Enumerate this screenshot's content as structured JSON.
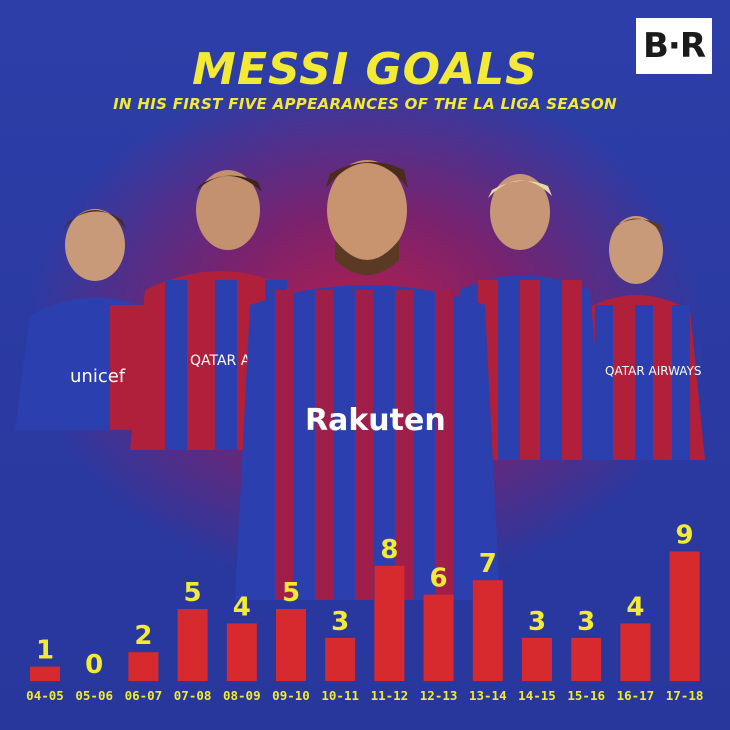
{
  "brand": {
    "logo_text": "B·R"
  },
  "colors": {
    "background": "#2e3ea8",
    "bar": "#d62a2e",
    "text": "#f2ea34",
    "player_red": "#b0203a",
    "player_blue": "#2c3fae"
  },
  "chart_data": {
    "type": "bar",
    "title": "MESSI GOALS",
    "subtitle": "IN HIS FIRST FIVE APPEARANCES OF THE LA LIGA SEASON",
    "xlabel": "",
    "ylabel": "",
    "categories": [
      "04-05",
      "05-06",
      "06-07",
      "07-08",
      "08-09",
      "09-10",
      "10-11",
      "11-12",
      "12-13",
      "13-14",
      "14-15",
      "15-16",
      "16-17",
      "17-18"
    ],
    "values": [
      1,
      0,
      2,
      5,
      4,
      5,
      3,
      8,
      6,
      7,
      3,
      3,
      4,
      9
    ],
    "ylim": [
      0,
      9
    ],
    "grid": false,
    "data_labels": true
  },
  "photo": {
    "jersey_texts": [
      "unicef",
      "QATAR AIRWAYS",
      "Rakuten",
      "QATAR AIRWAYS"
    ]
  }
}
